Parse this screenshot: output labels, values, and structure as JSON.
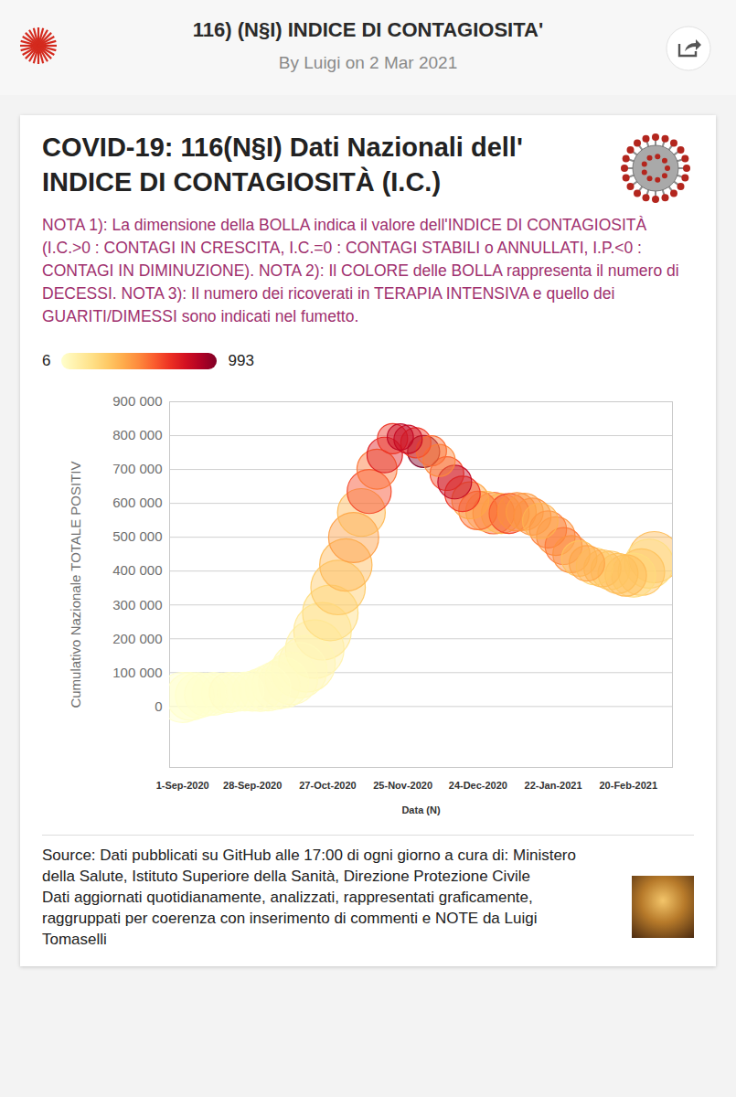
{
  "header": {
    "title": "116) (N§I) INDICE DI CONTAGIOSITA'",
    "byline": "By Luigi on 2 Mar 2021"
  },
  "chart_data": {
    "type": "scatter",
    "marker": "circle",
    "title": "COVID-19: 116(N§I) Dati Nazionali dell' INDICE DI CONTAGIOSITÀ (I.C.)",
    "subtitle": "NOTA 1): La dimensione della BOLLA indica il valore dell'INDICE DI CONTAGIOSITÀ (I.C.>0 : CONTAGI IN CRESCITA, I.C.=0 : CONTAGI STABILI o ANNULLATI, I.P.<0 : CONTAGI IN DIMINUZIONE). NOTA 2): Il COLORE delle BOLLA rappresenta il numero di DECESSI. NOTA 3): Il numero dei ricoverati in TERAPIA INTENSIVA e quello dei GUARITI/DIMESSI sono indicati nel fumetto.",
    "caption": [
      "Source: Dati pubblicati su GitHub alle 17:00 di ogni giorno a cura di: Ministero della Salute, Istituto Superiore della Sanità, Direzione Protezione Civile",
      "Dati aggiornati quotidianamente, analizzati, rappresentati graficamente, raggruppati per coerenza con inserimento di commenti e NOTE da Luigi Tomaselli"
    ],
    "xlabel": "Data (N)",
    "ylabel": "Cumulativo Nazionale TOTALE POSITIV",
    "x": [
      "2020-09-01",
      "2020-09-04",
      "2020-09-07",
      "2020-09-10",
      "2020-09-13",
      "2020-09-16",
      "2020-09-19",
      "2020-09-22",
      "2020-09-25",
      "2020-09-28",
      "2020-10-01",
      "2020-10-04",
      "2020-10-07",
      "2020-10-10",
      "2020-10-13",
      "2020-10-16",
      "2020-10-19",
      "2020-10-22",
      "2020-10-25",
      "2020-10-28",
      "2020-10-31",
      "2020-11-03",
      "2020-11-06",
      "2020-11-09",
      "2020-11-12",
      "2020-11-15",
      "2020-11-18",
      "2020-11-21",
      "2020-11-24",
      "2020-11-27",
      "2020-11-30",
      "2020-12-03",
      "2020-12-06",
      "2020-12-09",
      "2020-12-12",
      "2020-12-15",
      "2020-12-18",
      "2020-12-21",
      "2020-12-24",
      "2020-12-27",
      "2020-12-30",
      "2021-01-02",
      "2021-01-05",
      "2021-01-08",
      "2021-01-11",
      "2021-01-14",
      "2021-01-17",
      "2021-01-20",
      "2021-01-23",
      "2021-01-26",
      "2021-01-29",
      "2021-02-01",
      "2021-02-04",
      "2021-02-07",
      "2021-02-10",
      "2021-02-13",
      "2021-02-16",
      "2021-02-19",
      "2021-02-22",
      "2021-02-25",
      "2021-02-28",
      "2021-03-02"
    ],
    "values": [
      26800,
      29900,
      32900,
      35100,
      37500,
      39200,
      41400,
      42900,
      44100,
      45600,
      48600,
      54200,
      62000,
      70100,
      82800,
      107000,
      126200,
      169300,
      222200,
      276400,
      351400,
      418100,
      499000,
      573000,
      635000,
      701000,
      743000,
      791000,
      796000,
      789000,
      779000,
      753000,
      755000,
      727000,
      688000,
      663000,
      628000,
      609000,
      579000,
      577000,
      571000,
      570000,
      570000,
      575000,
      575000,
      561000,
      548000,
      523000,
      503000,
      474000,
      450000,
      437000,
      423000,
      414000,
      408000,
      402000,
      393000,
      387000,
      388000,
      397000,
      422000,
      441000
    ],
    "sizes": [
      22,
      20,
      18,
      16,
      16,
      14,
      14,
      13,
      13,
      14,
      16,
      18,
      20,
      22,
      24,
      27,
      28,
      30,
      29,
      27,
      26,
      24,
      22,
      20,
      17,
      14,
      11,
      8,
      6,
      7,
      8,
      9,
      8,
      9,
      10,
      10,
      11,
      12,
      13,
      14,
      15,
      14,
      14,
      13,
      12,
      12,
      11,
      12,
      13,
      12,
      12,
      11,
      11,
      12,
      12,
      13,
      14,
      15,
      17,
      19,
      21,
      23
    ],
    "deaths": [
      6,
      10,
      8,
      10,
      7,
      9,
      24,
      14,
      10,
      17,
      23,
      18,
      31,
      28,
      41,
      47,
      73,
      91,
      151,
      221,
      297,
      353,
      445,
      356,
      636,
      546,
      753,
      692,
      853,
      827,
      672,
      993,
      564,
      499,
      649,
      846,
      683,
      415,
      553,
      305,
      575,
      364,
      649,
      483,
      448,
      477,
      377,
      524,
      472,
      541,
      477,
      329,
      421,
      270,
      336,
      316,
      336,
      347,
      232,
      318,
      220,
      343
    ],
    "colorbar": {
      "range": [
        6,
        993
      ],
      "ticks": [
        6,
        993
      ]
    },
    "legend": "top-left",
    "xlim": [
      "2020-08-27",
      "2021-03-09"
    ],
    "xticks": [
      {
        "value": "2020-09-01",
        "label": "1-Sep-2020"
      },
      {
        "value": "2020-09-28",
        "label": "28-Sep-2020"
      },
      {
        "value": "2020-10-27",
        "label": "27-Oct-2020"
      },
      {
        "value": "2020-11-25",
        "label": "25-Nov-2020"
      },
      {
        "value": "2020-12-24",
        "label": "24-Dec-2020"
      },
      {
        "value": "2021-01-22",
        "label": "22-Jan-2021"
      },
      {
        "value": "2021-02-20",
        "label": "20-Feb-2021"
      }
    ],
    "ylim": [
      -180000,
      900000
    ],
    "yticks": [
      0,
      {
        "value": 100000,
        "label": "100 000"
      },
      {
        "value": 200000,
        "label": "200 000"
      },
      {
        "value": 300000,
        "label": "300 000"
      },
      {
        "value": 400000,
        "label": "400 000"
      },
      {
        "value": 500000,
        "label": "500 000"
      },
      {
        "value": 600000,
        "label": "600 000"
      },
      {
        "value": 700000,
        "label": "700 000"
      },
      {
        "value": 800000,
        "label": "800 000"
      },
      {
        "value": 900000,
        "label": "900 000"
      }
    ],
    "grid": "y"
  }
}
